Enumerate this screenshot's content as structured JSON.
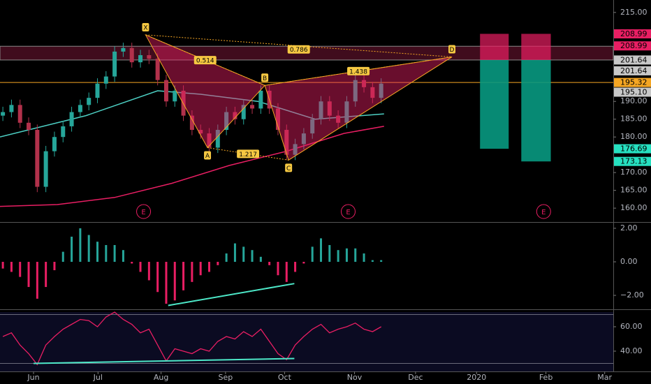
{
  "chart_data": [
    {
      "type": "candlestick",
      "x": [
        1,
        4,
        7,
        10,
        13,
        16,
        19,
        22,
        25,
        28,
        31,
        34,
        37,
        40,
        43,
        46,
        49,
        52,
        55,
        58,
        61,
        64,
        67,
        70,
        73,
        76,
        79,
        82,
        85,
        88,
        91,
        94,
        97,
        100,
        103,
        106,
        109,
        112,
        115,
        118,
        121,
        124,
        127,
        130,
        133
      ],
      "open": [
        186,
        187,
        189,
        184,
        182,
        166,
        176,
        180,
        183,
        187,
        189,
        191,
        195,
        197,
        204,
        205,
        201,
        203,
        202,
        196,
        190,
        193,
        186,
        182,
        181,
        177,
        182,
        187,
        185,
        189,
        188,
        193,
        188,
        182,
        175,
        178,
        181,
        185,
        190,
        186,
        184,
        190,
        196,
        194,
        191
      ],
      "high": [
        188.5,
        190.5,
        190.5,
        185.5,
        183.5,
        177.5,
        181.5,
        184.5,
        188.5,
        190.5,
        192.5,
        196.5,
        198.5,
        205.5,
        206.5,
        206.5,
        204.5,
        204.5,
        203.5,
        197.5,
        194.5,
        194.5,
        187.5,
        183.5,
        182.5,
        183.5,
        188.5,
        188.5,
        190.5,
        190.5,
        194.5,
        194.5,
        189.5,
        183.5,
        179.5,
        182.5,
        186.5,
        191.5,
        191.5,
        187.5,
        191.5,
        197.5,
        197.5,
        195.5,
        196.5
      ],
      "low": [
        184.5,
        185.5,
        182.5,
        180.5,
        164.5,
        164.5,
        174.5,
        178.5,
        181.5,
        185.5,
        187.5,
        189.5,
        193.5,
        195.5,
        202.5,
        199.5,
        199.5,
        200.5,
        194.5,
        188.5,
        188.5,
        184.5,
        180.5,
        179.5,
        175.5,
        175.5,
        180.5,
        183.5,
        183.5,
        186.5,
        186.5,
        186.5,
        180.5,
        173.5,
        173.5,
        176.5,
        179.5,
        183.5,
        184.5,
        182.5,
        182.5,
        188.5,
        192.5,
        189.5,
        189.5
      ],
      "close": [
        187,
        189,
        184,
        182,
        166,
        176,
        180,
        183,
        187,
        189,
        191,
        195,
        197,
        204,
        205,
        201,
        203,
        202,
        196,
        190,
        193,
        186,
        182,
        181,
        177,
        182,
        187,
        185,
        189,
        188,
        193,
        188,
        182,
        175,
        178,
        181,
        185,
        190,
        186,
        184,
        190,
        196,
        194,
        191,
        195
      ],
      "up_color": "#26a69a",
      "down_color": "#b2314b",
      "xlim": [
        0,
        214
      ],
      "ylim": [
        156.1,
        218.5
      ],
      "yticks": [
        {
          "value": 215,
          "label": "215.00"
        },
        {
          "value": 190,
          "label": "190.00"
        },
        {
          "value": 185,
          "label": "185.00"
        },
        {
          "value": 180,
          "label": "180.00"
        },
        {
          "value": 170,
          "label": "170.00"
        },
        {
          "value": 165,
          "label": "165.00"
        },
        {
          "value": 160,
          "label": "160.00"
        }
      ],
      "overlays": [
        {
          "color": "#e91e63",
          "x": [
            0,
            20,
            40,
            60,
            80,
            100,
            120,
            134
          ],
          "values": [
            160.5,
            161,
            163,
            167,
            172,
            176,
            181,
            183
          ]
        },
        {
          "color": "#4dd0c4",
          "x": [
            0,
            30,
            55,
            70,
            90,
            110,
            134
          ],
          "values": [
            180,
            186,
            193,
            192,
            190,
            185,
            186.5
          ]
        }
      ],
      "pattern": {
        "points": [
          {
            "label": "X",
            "x": 50.8,
            "y": 208.7
          },
          {
            "label": "A",
            "x": 72.4,
            "y": 177
          },
          {
            "label": "B",
            "x": 92.4,
            "y": 194.5
          },
          {
            "label": "C",
            "x": 100.7,
            "y": 173.5
          },
          {
            "label": "D",
            "x": 157.7,
            "y": 202.5
          }
        ],
        "ratios": {
          "XB": 0.514,
          "XD": 0.786,
          "AC": 1.217,
          "BD": 1.438
        }
      },
      "zone": {
        "low": 201.64,
        "high": 205.5
      },
      "level": 195.32,
      "targets": [
        {
          "x0": 167.5,
          "x1": 177.5,
          "top": 208.99,
          "mid": 201.64,
          "bottom": 176.69
        },
        {
          "x0": 181.9,
          "x1": 192.2,
          "top": 208.99,
          "mid": 201.64,
          "bottom": 173.13
        }
      ],
      "earnings": {
        "label": "E",
        "x": [
          50.1,
          121.5,
          189.7
        ]
      },
      "price_tags": [
        {
          "value": 208.99,
          "label": "208.99",
          "color": "#e91e63"
        },
        {
          "value": 205.6,
          "label": "208.99",
          "color": "#e91e63"
        },
        {
          "value": 201.64,
          "label": "201.64",
          "color": "#c8c8c8"
        },
        {
          "value": 198.6,
          "label": "201.64",
          "color": "#c8c8c8"
        },
        {
          "value": 195.32,
          "label": "195.32",
          "color": "#f5a623"
        },
        {
          "value": 192.6,
          "label": "195.10",
          "color": "#c8c8c8"
        },
        {
          "value": 176.69,
          "label": "176.69",
          "color": "#26e0c0"
        },
        {
          "value": 173.13,
          "label": "173.13",
          "color": "#26e0c0"
        }
      ]
    },
    {
      "type": "bar",
      "x": [
        1,
        4,
        7,
        10,
        13,
        16,
        19,
        22,
        25,
        28,
        31,
        34,
        37,
        40,
        43,
        46,
        49,
        52,
        55,
        58,
        61,
        64,
        67,
        70,
        73,
        76,
        79,
        82,
        85,
        88,
        91,
        94,
        97,
        100,
        103,
        106,
        109,
        112,
        115,
        118,
        121,
        124,
        127,
        130,
        133
      ],
      "values": [
        -0.4,
        -0.6,
        -0.9,
        -1.5,
        -2.2,
        -1.5,
        -0.5,
        0.6,
        1.5,
        2.0,
        1.6,
        1.2,
        1.0,
        1.0,
        0.7,
        -0.1,
        -0.6,
        -1.1,
        -1.8,
        -2.5,
        -2.3,
        -1.7,
        -1.2,
        -0.8,
        -0.6,
        -0.2,
        0.5,
        1.1,
        0.9,
        0.7,
        0.3,
        -0.2,
        -0.8,
        -1.2,
        -0.6,
        -0.1,
        0.9,
        1.4,
        1.0,
        0.7,
        0.8,
        0.8,
        0.5,
        0.1,
        0.1
      ],
      "up_color": "#26a69a",
      "down_color": "#e91e63",
      "xlim": [
        0,
        214
      ],
      "ylim": [
        -2.83,
        2.29
      ],
      "yticks": [
        {
          "value": 2,
          "label": "2.00"
        },
        {
          "value": 0,
          "label": "0.00"
        },
        {
          "value": -2,
          "label": "−2.00"
        }
      ],
      "divergence": {
        "x": [
          58.7,
          102.7
        ],
        "values": [
          -2.6,
          -1.3
        ],
        "color": "#4de8c8"
      }
    },
    {
      "type": "line",
      "x": [
        1,
        4,
        7,
        10,
        13,
        16,
        19,
        22,
        25,
        28,
        31,
        34,
        37,
        40,
        43,
        46,
        49,
        52,
        55,
        58,
        61,
        64,
        67,
        70,
        73,
        76,
        79,
        82,
        85,
        88,
        91,
        94,
        97,
        100,
        103,
        106,
        109,
        112,
        115,
        118,
        121,
        124,
        127,
        130,
        133
      ],
      "values": [
        52,
        55,
        45,
        38,
        29,
        45,
        52,
        58,
        62,
        66,
        65,
        60,
        68,
        72,
        66,
        62,
        55,
        58,
        45,
        32,
        42,
        40,
        38,
        42,
        40,
        48,
        52,
        50,
        56,
        52,
        58,
        48,
        38,
        33,
        45,
        52,
        58,
        62,
        55,
        58,
        60,
        63,
        58,
        56,
        60
      ],
      "color": "#e91e63",
      "xlim": [
        0,
        214
      ],
      "ylim": [
        23.4,
        72
      ],
      "yticks": [
        {
          "value": 60,
          "label": "60.00"
        },
        {
          "value": 40,
          "label": "40.00"
        }
      ],
      "bands": [
        70,
        30
      ],
      "divergence": {
        "x": [
          11.7,
          102.7
        ],
        "values": [
          30,
          34
        ],
        "color": "#4de8c8"
      },
      "xticks": [
        {
          "value": 11.7,
          "label": "Jun"
        },
        {
          "value": 34.2,
          "label": "Jul"
        },
        {
          "value": 56.2,
          "label": "Aug"
        },
        {
          "value": 78.7,
          "label": "Sep"
        },
        {
          "value": 99.3,
          "label": "Oct"
        },
        {
          "value": 123.7,
          "label": "Nov"
        },
        {
          "value": 145,
          "label": "Dec"
        },
        {
          "value": 166.3,
          "label": "2020"
        },
        {
          "value": 190.5,
          "label": "Feb"
        },
        {
          "value": 211,
          "label": "Mar"
        }
      ]
    }
  ]
}
